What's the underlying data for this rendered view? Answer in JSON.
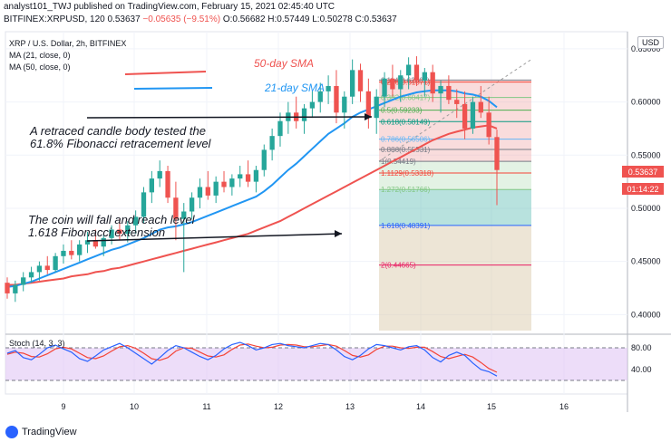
{
  "header": {
    "line1": "analyst101_TWJ published on TradingView.com, February 15, 2021 02:45:40 UTC",
    "symbol": "BITFINEX:XRPUSD, 120",
    "last": "0.53637",
    "change": "−0.05635 (−9.51%)",
    "ohlc": "O:0.56682 H:0.57449 L:0.50278 C:0.53637"
  },
  "legend": {
    "title": "XRP / U.S. Dollar, 2h, BITFINEX",
    "ma21": "MA (21, close, 0)",
    "ma50": "MA (50, close, 0)",
    "usd": "USD"
  },
  "annotations": {
    "sma50": "50-day SMA",
    "sma21": "21-day SMA",
    "note1_line1": "A retraced candle body tested the",
    "note1_line2": "61.8% Fibonacci retracement level",
    "note2_line1": "The coin will fall and reach level",
    "note2_line2": "1.618 Fibonacci extension"
  },
  "price_label": {
    "value": "0.53637",
    "countdown": "01:14:22"
  },
  "stoch_label": "Stoch (14, 3, 3)",
  "footer": "TradingView",
  "colors": {
    "up": "#26a69a",
    "down": "#ef5350",
    "ma21": "#2196f3",
    "ma50": "#ef5350",
    "stoch_k": "#2962ff",
    "stoch_d": "#f44336",
    "stoch_band": "#e1c7f5"
  },
  "chart_data": {
    "type": "candlestick",
    "y_range": [
      0.385,
      0.655
    ],
    "y_ticks": [
      "0.65000",
      "0.60000",
      "0.55000",
      "0.50000",
      "0.45000",
      "0.40000"
    ],
    "x_ticks": [
      "9",
      "10",
      "11",
      "12",
      "13",
      "14",
      "15",
      "16"
    ],
    "candles": [
      [
        0.43,
        0.435,
        0.415,
        0.42
      ],
      [
        0.42,
        0.432,
        0.412,
        0.428
      ],
      [
        0.428,
        0.44,
        0.422,
        0.435
      ],
      [
        0.435,
        0.445,
        0.43,
        0.44
      ],
      [
        0.44,
        0.45,
        0.432,
        0.446
      ],
      [
        0.446,
        0.455,
        0.438,
        0.442
      ],
      [
        0.442,
        0.458,
        0.44,
        0.455
      ],
      [
        0.455,
        0.466,
        0.448,
        0.46
      ],
      [
        0.46,
        0.47,
        0.452,
        0.456
      ],
      [
        0.456,
        0.47,
        0.45,
        0.466
      ],
      [
        0.466,
        0.478,
        0.458,
        0.47
      ],
      [
        0.47,
        0.48,
        0.462,
        0.464
      ],
      [
        0.464,
        0.475,
        0.455,
        0.472
      ],
      [
        0.472,
        0.484,
        0.466,
        0.48
      ],
      [
        0.48,
        0.49,
        0.47,
        0.476
      ],
      [
        0.476,
        0.488,
        0.468,
        0.484
      ],
      [
        0.484,
        0.498,
        0.476,
        0.492
      ],
      [
        0.492,
        0.52,
        0.486,
        0.515
      ],
      [
        0.515,
        0.535,
        0.505,
        0.528
      ],
      [
        0.528,
        0.545,
        0.52,
        0.535
      ],
      [
        0.535,
        0.54,
        0.505,
        0.51
      ],
      [
        0.51,
        0.525,
        0.47,
        0.49
      ],
      [
        0.49,
        0.505,
        0.44,
        0.497
      ],
      [
        0.497,
        0.515,
        0.49,
        0.51
      ],
      [
        0.51,
        0.528,
        0.5,
        0.52
      ],
      [
        0.52,
        0.535,
        0.508,
        0.512
      ],
      [
        0.512,
        0.53,
        0.505,
        0.525
      ],
      [
        0.525,
        0.535,
        0.515,
        0.52
      ],
      [
        0.52,
        0.532,
        0.512,
        0.528
      ],
      [
        0.528,
        0.54,
        0.52,
        0.532
      ],
      [
        0.532,
        0.545,
        0.52,
        0.525
      ],
      [
        0.525,
        0.54,
        0.515,
        0.536
      ],
      [
        0.536,
        0.56,
        0.53,
        0.555
      ],
      [
        0.555,
        0.575,
        0.545,
        0.568
      ],
      [
        0.568,
        0.59,
        0.558,
        0.582
      ],
      [
        0.582,
        0.6,
        0.57,
        0.59
      ],
      [
        0.59,
        0.605,
        0.575,
        0.582
      ],
      [
        0.582,
        0.598,
        0.57,
        0.594
      ],
      [
        0.594,
        0.61,
        0.585,
        0.6
      ],
      [
        0.6,
        0.618,
        0.59,
        0.61
      ],
      [
        0.61,
        0.625,
        0.598,
        0.615
      ],
      [
        0.615,
        0.63,
        0.58,
        0.59
      ],
      [
        0.59,
        0.61,
        0.575,
        0.605
      ],
      [
        0.605,
        0.64,
        0.598,
        0.63
      ],
      [
        0.63,
        0.636,
        0.6,
        0.61
      ],
      [
        0.61,
        0.622,
        0.575,
        0.585
      ],
      [
        0.585,
        0.612,
        0.57,
        0.605
      ],
      [
        0.605,
        0.628,
        0.595,
        0.622
      ],
      [
        0.622,
        0.635,
        0.605,
        0.612
      ],
      [
        0.612,
        0.63,
        0.6,
        0.625
      ],
      [
        0.625,
        0.642,
        0.612,
        0.635
      ],
      [
        0.635,
        0.643,
        0.615,
        0.62
      ],
      [
        0.62,
        0.632,
        0.605,
        0.628
      ],
      [
        0.628,
        0.635,
        0.6,
        0.608
      ],
      [
        0.608,
        0.62,
        0.59,
        0.615
      ],
      [
        0.615,
        0.625,
        0.598,
        0.602
      ],
      [
        0.602,
        0.612,
        0.585,
        0.598
      ],
      [
        0.598,
        0.61,
        0.565,
        0.575
      ],
      [
        0.575,
        0.605,
        0.57,
        0.6
      ],
      [
        0.6,
        0.615,
        0.585,
        0.59
      ],
      [
        0.59,
        0.605,
        0.56,
        0.567
      ],
      [
        0.567,
        0.574,
        0.503,
        0.536
      ]
    ],
    "ma21": [
      0.426,
      0.427,
      0.429,
      0.431,
      0.434,
      0.437,
      0.44,
      0.443,
      0.446,
      0.449,
      0.452,
      0.455,
      0.458,
      0.461,
      0.463,
      0.466,
      0.469,
      0.472,
      0.476,
      0.48,
      0.482,
      0.483,
      0.485,
      0.487,
      0.49,
      0.493,
      0.496,
      0.499,
      0.502,
      0.505,
      0.508,
      0.511,
      0.516,
      0.522,
      0.529,
      0.536,
      0.542,
      0.549,
      0.556,
      0.563,
      0.57,
      0.575,
      0.58,
      0.586,
      0.59,
      0.593,
      0.596,
      0.599,
      0.602,
      0.605,
      0.607,
      0.609,
      0.61,
      0.611,
      0.611,
      0.611,
      0.61,
      0.608,
      0.607,
      0.605,
      0.601,
      0.595
    ],
    "ma50": [
      0.428,
      0.428,
      0.429,
      0.43,
      0.431,
      0.432,
      0.433,
      0.434,
      0.436,
      0.437,
      0.438,
      0.44,
      0.441,
      0.443,
      0.444,
      0.446,
      0.448,
      0.45,
      0.452,
      0.454,
      0.456,
      0.458,
      0.46,
      0.462,
      0.464,
      0.466,
      0.468,
      0.47,
      0.472,
      0.474,
      0.476,
      0.479,
      0.482,
      0.485,
      0.488,
      0.492,
      0.496,
      0.5,
      0.504,
      0.508,
      0.512,
      0.516,
      0.52,
      0.524,
      0.528,
      0.532,
      0.536,
      0.54,
      0.544,
      0.548,
      0.552,
      0.556,
      0.56,
      0.564,
      0.567,
      0.57,
      0.572,
      0.574,
      0.576,
      0.577,
      0.578,
      0.575
    ],
    "fib_levels": [
      {
        "label": "0.114(0.62061)",
        "value": 0.62061,
        "color": "#787b86"
      },
      {
        "label": "0.236(0.61871)",
        "value": 0.61871,
        "color": "#f44336"
      },
      {
        "label": "0.382(0.60417)",
        "value": 0.60417,
        "color": "#81c784"
      },
      {
        "label": "0.5(0.59233)",
        "value": 0.59233,
        "color": "#4caf50"
      },
      {
        "label": "0.618(0.58149)",
        "value": 0.58149,
        "color": "#089981"
      },
      {
        "label": "0.786(0.56506)",
        "value": 0.56506,
        "color": "#64b5f6"
      },
      {
        "label": "0.886(0.55531)",
        "value": 0.55531,
        "color": "#787b86"
      },
      {
        "label": "1(0.54419)",
        "value": 0.54419,
        "color": "#787b86"
      },
      {
        "label": "1.1129(0.53318)",
        "value": 0.53318,
        "color": "#f44336"
      },
      {
        "label": "1.272(0.51766)",
        "value": 0.51766,
        "color": "#81c784"
      },
      {
        "label": "1.618(0.48391)",
        "value": 0.48391,
        "color": "#2962ff"
      },
      {
        "label": "2(0.44665)",
        "value": 0.44665,
        "color": "#e91e63"
      }
    ],
    "stoch_range": [
      0,
      100
    ],
    "stoch_ticks": [
      "80.00",
      "40.00"
    ],
    "stoch_k": [
      70,
      75,
      62,
      58,
      68,
      80,
      85,
      78,
      72,
      60,
      55,
      65,
      76,
      82,
      88,
      80,
      70,
      60,
      50,
      62,
      75,
      84,
      80,
      72,
      64,
      58,
      66,
      78,
      86,
      90,
      84,
      76,
      80,
      86,
      88,
      84,
      82,
      80,
      84,
      88,
      86,
      76,
      64,
      58,
      66,
      78,
      86,
      84,
      80,
      76,
      82,
      84,
      76,
      62,
      54,
      66,
      72,
      66,
      52,
      40,
      36,
      28
    ],
    "stoch_d": [
      68,
      72,
      70,
      64,
      63,
      69,
      78,
      81,
      78,
      70,
      62,
      60,
      65,
      74,
      82,
      84,
      79,
      70,
      60,
      57,
      62,
      74,
      80,
      79,
      72,
      65,
      63,
      67,
      77,
      85,
      87,
      83,
      80,
      81,
      85,
      86,
      85,
      82,
      82,
      84,
      86,
      83,
      75,
      66,
      63,
      67,
      77,
      83,
      83,
      80,
      79,
      81,
      81,
      73,
      64,
      60,
      64,
      68,
      63,
      53,
      42,
      35
    ]
  }
}
